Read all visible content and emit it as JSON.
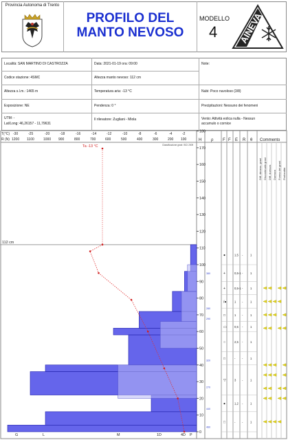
{
  "header": {
    "province": "Provincia Autonoma di Trento",
    "title_line1": "PROFILO DEL",
    "title_line2": "MANTO NEVOSO",
    "model_label": "MODELLO",
    "model_number": "4",
    "logo_text": "AINEVA"
  },
  "info": {
    "location": "Località: SAN MARTINO DI CASTROZZA",
    "datetime": "Data: 2021-01-19   ora: 09:00",
    "notes": "Note:",
    "station_code": "Codice stazione: 4SMC",
    "snow_depth": "Altezza manto nevoso: 112 cm",
    "altitude": "Altezza s.l.m.: 1465 m",
    "air_temp": "Temperatura aria: -13 °C",
    "clouds": "Nubi: Poco nuvoloso (3/8)",
    "exposure": "Esposizione: NE",
    "slope": "Pendenza: 0 °",
    "precipitation": "Precipitazioni: Nessuno dei fenomeni",
    "utm": "UTM:  -",
    "latlong": "Lat/Long: 46,26157 - 11,79631",
    "observer": "Il rilevatore: Zugliani - Miola",
    "wind_line1": "Vento: Attività eolica nulla - Nessun",
    "wind_line2": "accumulo o cornice"
  },
  "axes": {
    "t_label": "T(°C)",
    "r_label": "R (N)",
    "t_ticks": [
      "-30",
      "-25",
      "-20",
      "-18",
      "-16",
      "-14",
      "-12",
      "-10",
      "-8",
      "-6",
      "-4",
      "-2"
    ],
    "r_ticks": [
      "1200",
      "1100",
      "1000",
      "900",
      "800",
      "700",
      "600",
      "500",
      "400",
      "300",
      "200",
      "100"
    ],
    "h_label": "H",
    "h_ticks": [
      "180",
      "170",
      "160",
      "150",
      "140",
      "130",
      "120",
      "110",
      "100",
      "90",
      "80",
      "70",
      "60",
      "50",
      "40",
      "30",
      "20",
      "10",
      "0"
    ],
    "bottom_ticks": [
      "G",
      "L",
      "M",
      "1D",
      "4D",
      "P"
    ],
    "classification": "Classificazione grani: ISCI 2009",
    "ta_label": "Ta -13 °C",
    "depth_marker": "112 cm",
    "rho_header": "ρ"
  },
  "columns": {
    "f": "F",
    "f2": "F",
    "e": "E",
    "r": "R",
    "theta": "θ",
    "comment": "Commento",
    "comment_sub": [
      "Diff. dimens. grani",
      "Discontinuità grani",
      "Diff. durezza",
      "Durezza",
      "Forma dei grani",
      "Profondità"
    ]
  },
  "layers": [
    {
      "f": "●",
      "e": "1,5",
      "r": "-",
      "theta": "1"
    },
    {
      "f": "+",
      "e": "0,5-1",
      "r": "-",
      "theta": "1"
    },
    {
      "f": "+",
      "e": "0,5-1",
      "r": "-",
      "theta": "1"
    },
    {
      "f": "/●",
      "e": "1",
      "r": "-",
      "theta": "1"
    },
    {
      "f": "□",
      "e": "1",
      "r": "-",
      "theta": "1"
    },
    {
      "f": "▭",
      "e": "0,5",
      "r": "-",
      "theta": "1"
    },
    {
      "f": "○",
      "e": "2,5",
      "r": "-",
      "theta": "1"
    },
    {
      "f": "□",
      "e": "-",
      "r": "-",
      "theta": "1"
    },
    {
      "f": "▽",
      "e": "3",
      "r": "-",
      "theta": "1"
    },
    {
      "f": "●",
      "e": "1,2",
      "r": "-",
      "theta": "1"
    },
    {
      "f": "□",
      "e": "-",
      "r": "-",
      "theta": "1"
    }
  ],
  "density_labels": [
    "380",
    "280",
    "290",
    "320",
    "270",
    "440",
    "460"
  ],
  "chart_data": {
    "type": "line",
    "title": "",
    "temperature_profile": {
      "x_label": "T(°C)",
      "y_label": "H",
      "points": [
        {
          "t": -13,
          "h": 112
        },
        {
          "t": -14.6,
          "h": 108
        },
        {
          "t": -13.5,
          "h": 95
        },
        {
          "t": -9.3,
          "h": 79
        },
        {
          "t": -7.2,
          "h": 60
        },
        {
          "t": -5.1,
          "h": 38
        },
        {
          "t": -3.2,
          "h": 20
        },
        {
          "t": -2.2,
          "h": 0
        }
      ],
      "air_temperature": -13
    },
    "hardness_profile": {
      "x_label": "R (N)",
      "values_by_height": [
        {
          "h_from": 0,
          "h_to": 4,
          "r": 1250
        },
        {
          "h_from": 4,
          "h_to": 12,
          "r": 1000
        },
        {
          "h_from": 12,
          "h_to": 22,
          "r": 300
        },
        {
          "h_from": 22,
          "h_to": 36,
          "r": 1100
        },
        {
          "h_from": 36,
          "h_to": 40,
          "r": 1000
        },
        {
          "h_from": 40,
          "h_to": 58,
          "r": 450
        },
        {
          "h_from": 58,
          "h_to": 62,
          "r": 550
        },
        {
          "h_from": 62,
          "h_to": 72,
          "r": 380
        },
        {
          "h_from": 72,
          "h_to": 84,
          "r": 160
        },
        {
          "h_from": 84,
          "h_to": 96,
          "r": 80
        },
        {
          "h_from": 96,
          "h_to": 112,
          "r": 40
        }
      ]
    },
    "ylim": [
      0,
      185
    ]
  }
}
